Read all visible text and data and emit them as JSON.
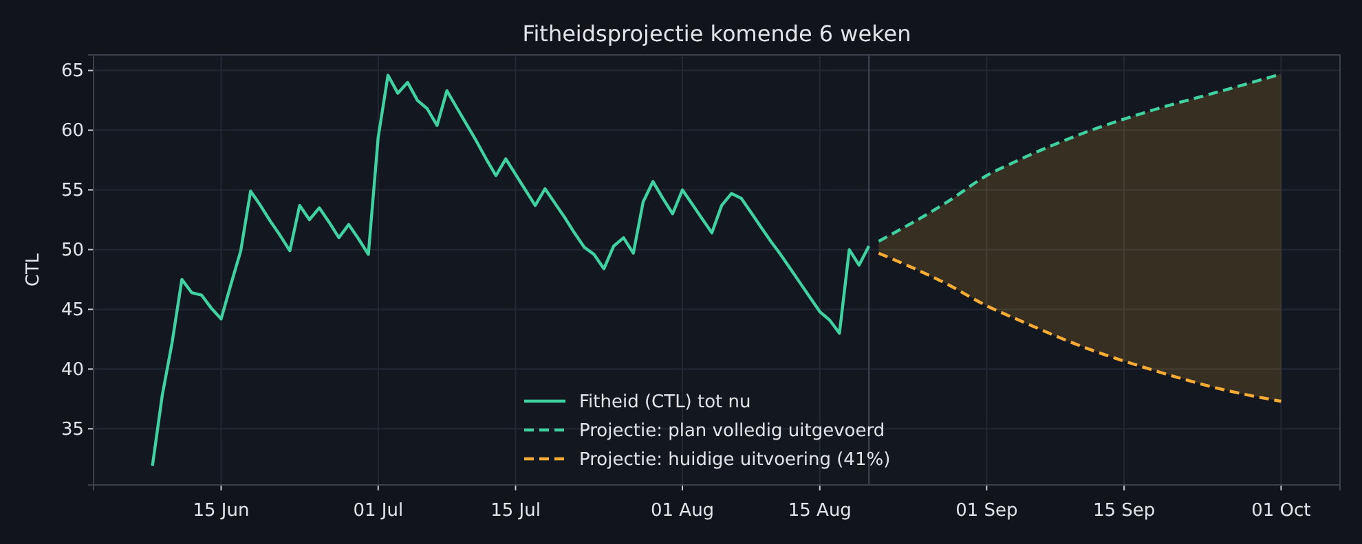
{
  "chart_data": {
    "type": "line",
    "title": "Fitheidsprojectie komende 6 weken",
    "ylabel": "CTL",
    "xlim": [
      "--06-02",
      "--10-07"
    ],
    "ylim": [
      30.3,
      66.3
    ],
    "xticks": [
      {
        "value": "--06-15",
        "label": "15 Jun"
      },
      {
        "value": "--07-01",
        "label": "01 Jul"
      },
      {
        "value": "--07-15",
        "label": "15 Jul"
      },
      {
        "value": "--08-01",
        "label": "01 Aug"
      },
      {
        "value": "--08-15",
        "label": "15 Aug"
      },
      {
        "value": "--09-01",
        "label": "01 Sep"
      },
      {
        "value": "--09-15",
        "label": "15 Sep"
      },
      {
        "value": "--10-01",
        "label": "01 Oct"
      }
    ],
    "yticks": [
      35,
      40,
      45,
      50,
      55,
      60,
      65
    ],
    "grid": true,
    "legend": "bottom",
    "ref_lines": [
      {
        "axis": "x",
        "value": "--08-20",
        "color": "#3a404b"
      }
    ],
    "series": [
      {
        "name": "Fitheid (CTL) tot nu",
        "color": "#3fd19f",
        "line_style": "solid",
        "x": [
          "--06-08",
          "--06-09",
          "--06-10",
          "--06-11",
          "--06-12",
          "--06-13",
          "--06-14",
          "--06-15",
          "--06-16",
          "--06-17",
          "--06-18",
          "--06-19",
          "--06-20",
          "--06-21",
          "--06-22",
          "--06-23",
          "--06-24",
          "--06-25",
          "--06-26",
          "--06-27",
          "--06-28",
          "--06-29",
          "--06-30",
          "--07-01",
          "--07-02",
          "--07-03",
          "--07-04",
          "--07-05",
          "--07-06",
          "--07-07",
          "--07-08",
          "--07-09",
          "--07-10",
          "--07-11",
          "--07-12",
          "--07-13",
          "--07-14",
          "--07-15",
          "--07-16",
          "--07-17",
          "--07-18",
          "--07-19",
          "--07-20",
          "--07-21",
          "--07-22",
          "--07-23",
          "--07-24",
          "--07-25",
          "--07-26",
          "--07-27",
          "--07-28",
          "--07-29",
          "--07-30",
          "--07-31",
          "--08-01",
          "--08-02",
          "--08-03",
          "--08-04",
          "--08-05",
          "--08-06",
          "--08-07",
          "--08-08",
          "--08-09",
          "--08-10",
          "--08-11",
          "--08-12",
          "--08-13",
          "--08-14",
          "--08-15",
          "--08-16",
          "--08-17",
          "--08-18",
          "--08-19",
          "--08-20"
        ],
        "values": [
          31.9,
          37.8,
          42.2,
          47.5,
          46.4,
          46.2,
          45.1,
          44.2,
          47.1,
          49.9,
          54.9,
          53.7,
          52.4,
          51.2,
          49.9,
          53.7,
          52.5,
          53.5,
          52.3,
          51.0,
          52.1,
          50.9,
          49.6,
          59.4,
          64.6,
          63.1,
          64.0,
          62.5,
          61.8,
          60.4,
          63.3,
          61.9,
          60.5,
          59.1,
          57.6,
          56.2,
          57.6,
          56.3,
          55.0,
          53.7,
          55.1,
          53.9,
          52.7,
          51.4,
          50.2,
          49.6,
          48.4,
          50.3,
          51.0,
          49.7,
          54.0,
          55.7,
          54.3,
          53.0,
          55.0,
          53.8,
          52.6,
          51.4,
          53.7,
          54.7,
          54.3,
          53.1,
          51.9,
          50.7,
          49.6,
          48.4,
          47.2,
          46.0,
          44.8,
          44.1,
          43.0,
          50.0,
          48.7,
          50.3
        ]
      },
      {
        "name": "Projectie: plan volledig uitgevoerd",
        "color": "#3fd19f",
        "line_style": "dashed",
        "x": [
          "--08-21",
          "--08-28",
          "--09-01",
          "--09-04",
          "--09-11",
          "--09-18",
          "--09-25",
          "--10-01"
        ],
        "values": [
          50.7,
          54.0,
          56.2,
          57.4,
          59.8,
          61.7,
          63.3,
          64.7
        ]
      },
      {
        "name": "Projectie: huidige uitvoering (41%)",
        "color": "#f9ac33",
        "line_style": "dashed",
        "x": [
          "--08-21",
          "--08-28",
          "--09-01",
          "--09-04",
          "--09-11",
          "--09-18",
          "--09-25",
          "--10-01"
        ],
        "values": [
          49.7,
          47.1,
          45.3,
          44.2,
          41.8,
          39.9,
          38.3,
          37.3
        ],
        "lower": [
          49.7,
          47.1,
          45.3,
          44.2,
          41.8,
          39.9,
          38.3,
          37.3
        ],
        "upper": [
          50.7,
          54.0,
          56.2,
          57.4,
          59.8,
          61.7,
          63.3,
          64.7
        ]
      }
    ]
  }
}
